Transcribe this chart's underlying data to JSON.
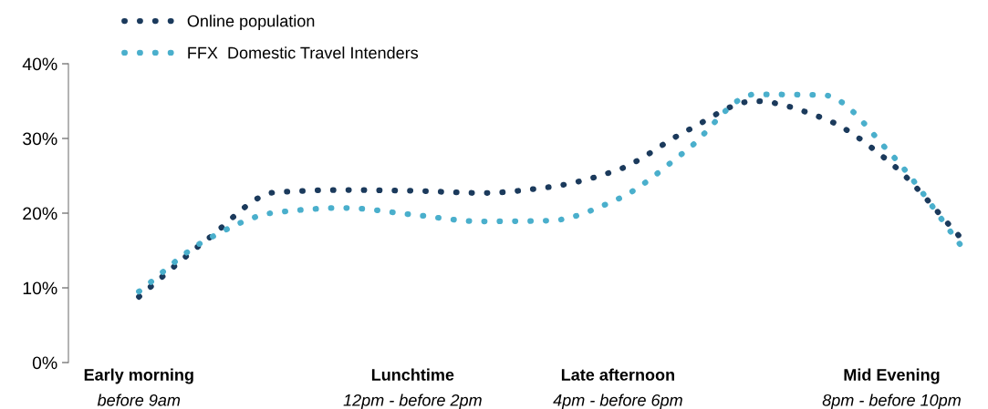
{
  "chart_data": {
    "type": "line",
    "categories": [
      "Early morning\nbefore 9am",
      null,
      null,
      null,
      "Lunchtime\n12pm - before 2pm",
      null,
      null,
      "Late afternoon\n4pm - before 6pm",
      null,
      null,
      null,
      "Mid Evening\n8pm - before 10pm",
      null
    ],
    "series": [
      {
        "name": "Online population",
        "color": "#1b3a5c",
        "values": [
          8.8,
          16.5,
          22.8,
          23.1,
          23.0,
          22.7,
          23.5,
          25.8,
          31.0,
          35.0,
          32.7,
          26.6,
          16.8
        ]
      },
      {
        "name": "FFX  Domestic Travel Intenders",
        "color": "#4aafcc",
        "values": [
          9.5,
          16.5,
          20.1,
          20.7,
          19.8,
          18.9,
          19.0,
          21.9,
          28.4,
          35.9,
          35.8,
          27.8,
          15.8
        ]
      }
    ],
    "ylim": [
      0,
      40
    ],
    "yticks": [
      {
        "value": 0,
        "label": "0%"
      },
      {
        "value": 10,
        "label": "10%"
      },
      {
        "value": 20,
        "label": "20%"
      },
      {
        "value": 30,
        "label": "30%"
      },
      {
        "value": 40,
        "label": "40%"
      }
    ],
    "line_style": "dotted",
    "marker": "none",
    "grid": false,
    "legend": "top left"
  }
}
